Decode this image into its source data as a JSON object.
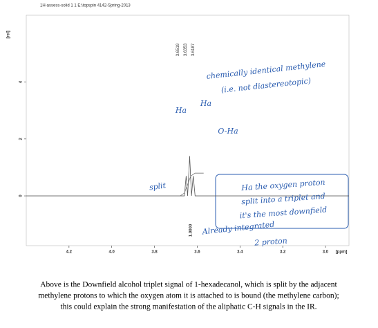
{
  "header": "1H-assess-solid 1 1 E:\\topspin 4142-Spring-2013",
  "chart_data": {
    "type": "line",
    "x_label": "[ppm]",
    "y_label": "[rel]",
    "x": [
      4.4,
      3.68,
      3.66,
      3.6519,
      3.645,
      3.6353,
      3.627,
      3.6187,
      3.61,
      3.58,
      2.89
    ],
    "series": [
      {
        "name": "spectrum",
        "color": "#555555",
        "values": [
          0,
          0,
          0,
          0.7,
          0,
          1.4,
          0,
          0.7,
          0,
          0,
          0
        ]
      }
    ],
    "integral": {
      "x": [
        3.68,
        3.66,
        3.645,
        3.63,
        3.61,
        3.57
      ],
      "values": [
        0,
        0.1,
        0.4,
        0.7,
        0.8,
        0.8
      ],
      "color": "#777777"
    },
    "integral_label": {
      "value": 1,
      "label": "1.0000"
    },
    "peak_labels": [
      3.6519,
      3.6353,
      3.6187
    ],
    "xlim": [
      4.4,
      2.89
    ],
    "ylim": [
      -1.75,
      6.35
    ],
    "xticks": [
      4.2,
      {
        "value": 4,
        "label": "4.0"
      },
      3.8,
      3.6,
      3.4,
      3.2,
      {
        "value": 3,
        "label": "3.0"
      }
    ],
    "yticks": [
      0,
      2,
      4
    ],
    "annotations": [
      "chemically identical methylene",
      "(i.e. not diastereotopic)",
      "Ha",
      "Ha",
      "O-Ha",
      "split",
      "Ha the oxygen proton",
      "split into a triplet and",
      "it's the most downfield",
      "Already integrated",
      "2 proton"
    ]
  },
  "caption": [
    "Above is the Downfield alcohol triplet signal of 1-hexadecanol, which is split by the adjacent",
    "methylene protons to which the oxygen atom it is attached to is bound (the methylene carbon);",
    "this could explain the strong manifestation of the aliphatic C-H signals in the IR."
  ]
}
